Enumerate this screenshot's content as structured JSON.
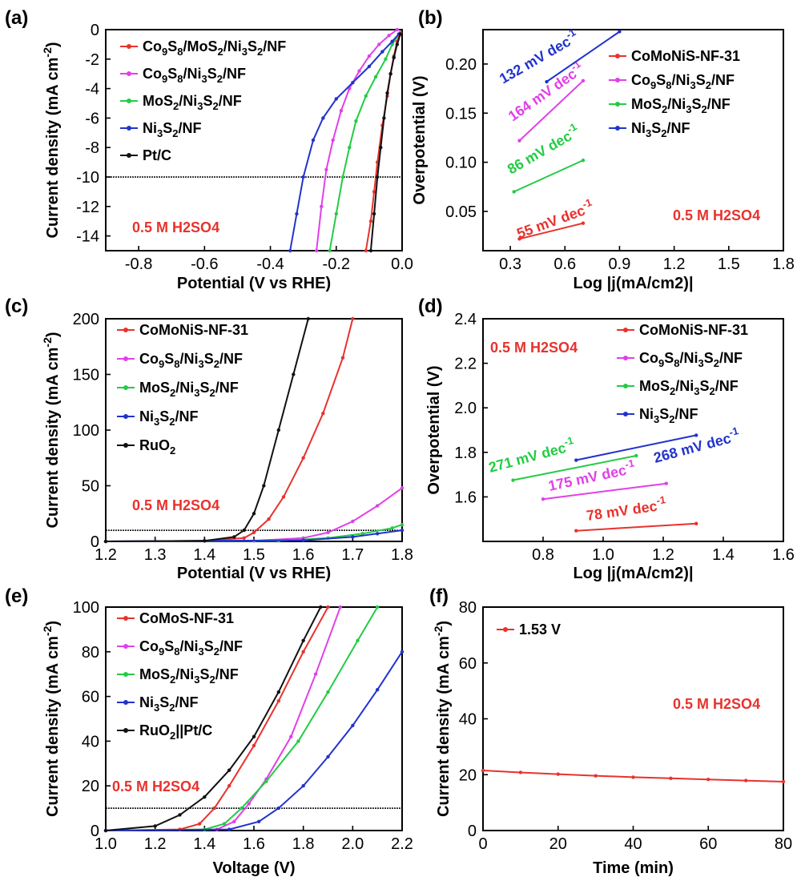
{
  "chart_data": [
    {
      "panel": "(a)",
      "type": "line",
      "xlabel": "Potential (V vs RHE)",
      "ylabel": "Current density (mA cm-2)",
      "xlim": [
        -0.9,
        0.0
      ],
      "ylim": [
        -15,
        0
      ],
      "xticks": [
        "-0.8",
        "-0.6",
        "-0.4",
        "-0.2",
        "0.0"
      ],
      "yticks": [
        "0",
        "-2",
        "-4",
        "-6",
        "-8",
        "-10",
        "-12",
        "-14"
      ],
      "annotation": "0.5 M H2SO4",
      "reference_line_y": -10,
      "legend_placement": "top-left",
      "series": [
        {
          "name": "Co9S8/MoS2/Ni3S2/NF",
          "color": "#e8322d",
          "x": [
            -0.11,
            -0.095,
            -0.085,
            -0.075,
            -0.06,
            -0.045,
            -0.035,
            -0.025,
            -0.015,
            -0.005
          ],
          "y": [
            -15,
            -13,
            -11,
            -9,
            -6.5,
            -4.5,
            -3,
            -1.8,
            -0.8,
            -0.2
          ]
        },
        {
          "name": "Co9S8/Ni3S2/NF",
          "color": "#e040e8",
          "x": [
            -0.26,
            -0.245,
            -0.23,
            -0.21,
            -0.185,
            -0.16,
            -0.13,
            -0.1,
            -0.07,
            -0.04,
            -0.015
          ],
          "y": [
            -15,
            -12,
            -9.5,
            -7.5,
            -5.5,
            -4,
            -2.8,
            -1.8,
            -1,
            -0.4,
            0
          ]
        },
        {
          "name": "MoS2/Ni3S2/NF",
          "color": "#22cc44",
          "x": [
            -0.22,
            -0.2,
            -0.18,
            -0.16,
            -0.14,
            -0.11,
            -0.08,
            -0.05,
            -0.03,
            -0.01
          ],
          "y": [
            -15,
            -12.5,
            -10,
            -8,
            -6.2,
            -4.5,
            -3.2,
            -2,
            -1,
            -0.3
          ]
        },
        {
          "name": "Ni3S2/NF",
          "color": "#2233cc",
          "x": [
            -0.34,
            -0.32,
            -0.3,
            -0.27,
            -0.24,
            -0.2,
            -0.15,
            -0.1,
            -0.06,
            -0.03,
            -0.01
          ],
          "y": [
            -15,
            -12.5,
            -10,
            -7.5,
            -6,
            -4.7,
            -3.6,
            -2.5,
            -1.5,
            -0.8,
            -0.3
          ]
        },
        {
          "name": "Pt/C",
          "color": "#111111",
          "x": [
            -0.095,
            -0.085,
            -0.075,
            -0.065,
            -0.055,
            -0.045,
            -0.035,
            -0.025,
            -0.015,
            -0.005
          ],
          "y": [
            -15,
            -12.5,
            -10,
            -8,
            -6,
            -4.3,
            -3,
            -1.9,
            -1,
            -0.3
          ]
        }
      ]
    },
    {
      "panel": "(b)",
      "type": "line",
      "xlabel": "Log |j(mA/cm2)|",
      "ylabel": "Overpotential (V)",
      "xlim": [
        0.15,
        1.8
      ],
      "ylim": [
        0.01,
        0.235
      ],
      "xticks": [
        "0.3",
        "0.6",
        "0.9",
        "1.2",
        "1.5",
        "1.8"
      ],
      "yticks": [
        "0.05",
        "0.10",
        "0.15",
        "0.20"
      ],
      "annotation": "0.5 M H2SO4",
      "legend_placement": "top-right",
      "series": [
        {
          "name": "CoMoNiS-NF-31",
          "color": "#e8322d",
          "x": [
            0.35,
            0.7
          ],
          "y": [
            0.022,
            0.038
          ],
          "slope_label": "55 mV dec-1"
        },
        {
          "name": "Co9S8/Ni3S2/NF",
          "color": "#e040e8",
          "x": [
            0.35,
            0.7
          ],
          "y": [
            0.122,
            0.183
          ],
          "slope_label": "164 mV dec-1"
        },
        {
          "name": "MoS2/Ni3S2/NF",
          "color": "#22cc44",
          "x": [
            0.32,
            0.7
          ],
          "y": [
            0.07,
            0.102
          ],
          "slope_label": "86 mV dec-1"
        },
        {
          "name": "Ni3S2/NF",
          "color": "#2233cc",
          "x": [
            0.5,
            0.9
          ],
          "y": [
            0.182,
            0.233
          ],
          "slope_label": "132 mV dec-1"
        }
      ]
    },
    {
      "panel": "(c)",
      "type": "line",
      "xlabel": "Potential (V vs RHE)",
      "ylabel": "Current density (mA cm-2)",
      "xlim": [
        1.2,
        1.8
      ],
      "ylim": [
        0,
        200
      ],
      "xticks": [
        "1.2",
        "1.3",
        "1.4",
        "1.5",
        "1.6",
        "1.7",
        "1.8"
      ],
      "yticks": [
        "0",
        "50",
        "100",
        "150",
        "200"
      ],
      "annotation": "0.5 M H2SO4",
      "reference_line_y": 10,
      "legend_placement": "top-left",
      "series": [
        {
          "name": "CoMoNiS-NF-31",
          "color": "#e8322d",
          "x": [
            1.2,
            1.4,
            1.48,
            1.5,
            1.53,
            1.56,
            1.6,
            1.64,
            1.68,
            1.7
          ],
          "y": [
            0,
            0.5,
            3,
            8,
            20,
            40,
            75,
            115,
            165,
            200
          ]
        },
        {
          "name": "Co9S8/Ni3S2/NF",
          "color": "#e040e8",
          "x": [
            1.2,
            1.5,
            1.6,
            1.65,
            1.7,
            1.75,
            1.8
          ],
          "y": [
            0,
            0.5,
            3,
            8,
            18,
            32,
            48
          ]
        },
        {
          "name": "MoS2/Ni3S2/NF",
          "color": "#22cc44",
          "x": [
            1.2,
            1.55,
            1.65,
            1.72,
            1.78,
            1.8
          ],
          "y": [
            0,
            0.5,
            3,
            7,
            12,
            15
          ]
        },
        {
          "name": "Ni3S2/NF",
          "color": "#2233cc",
          "x": [
            1.2,
            1.6,
            1.7,
            1.75,
            1.8
          ],
          "y": [
            0,
            1,
            4,
            7,
            10
          ]
        },
        {
          "name": "RuO2",
          "color": "#111111",
          "x": [
            1.2,
            1.4,
            1.46,
            1.48,
            1.5,
            1.52,
            1.55,
            1.58,
            1.61
          ],
          "y": [
            0,
            0.5,
            4,
            10,
            25,
            50,
            100,
            150,
            200
          ]
        }
      ]
    },
    {
      "panel": "(d)",
      "type": "line",
      "xlabel": "Log |j(mA/cm2)|",
      "ylabel": "Overpotential (V)",
      "xlim": [
        0.6,
        1.6
      ],
      "ylim": [
        1.4,
        2.4
      ],
      "xticks": [
        "0.8",
        "1.0",
        "1.2",
        "1.4",
        "1.6"
      ],
      "yticks": [
        "1.6",
        "1.8",
        "2.0",
        "2.2",
        "2.4"
      ],
      "annotation": "0.5 M H2SO4",
      "legend_placement": "top-right",
      "series": [
        {
          "name": "CoMoNiS-NF-31",
          "color": "#e8322d",
          "x": [
            0.91,
            1.31
          ],
          "y": [
            1.448,
            1.48
          ],
          "slope_label": "78 mV dec-1"
        },
        {
          "name": "Co9S8/Ni3S2/NF",
          "color": "#e040e8",
          "x": [
            0.8,
            1.21
          ],
          "y": [
            1.59,
            1.66
          ],
          "slope_label": "175 mV dec-1"
        },
        {
          "name": "MoS2/Ni3S2/NF",
          "color": "#22cc44",
          "x": [
            0.7,
            1.11
          ],
          "y": [
            1.675,
            1.785
          ],
          "slope_label": "271 mV dec-1"
        },
        {
          "name": "Ni3S2/NF",
          "color": "#2233cc",
          "x": [
            0.91,
            1.31
          ],
          "y": [
            1.765,
            1.877
          ],
          "slope_label": "268 mV dec-1"
        }
      ]
    },
    {
      "panel": "(e)",
      "type": "line",
      "xlabel": "Voltage (V)",
      "ylabel": "Current density (mA cm-2)",
      "xlim": [
        1.0,
        2.2
      ],
      "ylim": [
        0,
        100
      ],
      "xticks": [
        "1.0",
        "1.2",
        "1.4",
        "1.6",
        "1.8",
        "2.0",
        "2.2"
      ],
      "yticks": [
        "0",
        "20",
        "40",
        "60",
        "80",
        "100"
      ],
      "annotation": "0.5 M H2SO4",
      "reference_line_y": 10,
      "legend_placement": "top-left",
      "series": [
        {
          "name": "CoMoS-NF-31",
          "color": "#e8322d",
          "x": [
            1.0,
            1.3,
            1.38,
            1.44,
            1.5,
            1.6,
            1.7,
            1.8,
            1.9
          ],
          "y": [
            0,
            0.5,
            3,
            10,
            20,
            38,
            58,
            80,
            100
          ]
        },
        {
          "name": "Co9S8/Ni3S2/NF",
          "color": "#e040e8",
          "x": [
            1.0,
            1.45,
            1.52,
            1.58,
            1.65,
            1.75,
            1.85,
            1.95
          ],
          "y": [
            0,
            0.5,
            4,
            12,
            23,
            42,
            70,
            100
          ]
        },
        {
          "name": "MoS2/Ni3S2/NF",
          "color": "#22cc44",
          "x": [
            1.0,
            1.4,
            1.48,
            1.55,
            1.65,
            1.78,
            1.9,
            2.02,
            2.1
          ],
          "y": [
            0,
            0.5,
            3,
            10,
            22,
            40,
            62,
            85,
            100
          ]
        },
        {
          "name": "Ni3S2/NF",
          "color": "#2233cc",
          "x": [
            1.0,
            1.5,
            1.62,
            1.7,
            1.8,
            1.9,
            2.0,
            2.1,
            2.2
          ],
          "y": [
            0,
            0.5,
            4,
            10,
            20,
            33,
            47,
            63,
            80
          ]
        },
        {
          "name": "RuO2||Pt/C",
          "color": "#111111",
          "x": [
            1.0,
            1.2,
            1.3,
            1.4,
            1.5,
            1.6,
            1.7,
            1.8,
            1.87
          ],
          "y": [
            0,
            2,
            7,
            15,
            27,
            42,
            62,
            85,
            100
          ]
        }
      ]
    },
    {
      "panel": "(f)",
      "type": "line",
      "xlabel": "Time (min)",
      "ylabel": "Current density (mA cm-2)",
      "xlim": [
        0,
        80
      ],
      "ylim": [
        0,
        80
      ],
      "xticks": [
        "0",
        "20",
        "40",
        "60",
        "80"
      ],
      "yticks": [
        "0",
        "20",
        "40",
        "60",
        "80"
      ],
      "annotation": "0.5 M H2SO4",
      "legend_placement": "top-left",
      "series": [
        {
          "name": "1.53 V",
          "color": "#e8322d",
          "x": [
            0,
            10,
            20,
            30,
            40,
            50,
            60,
            70,
            80
          ],
          "y": [
            21.5,
            20.8,
            20.2,
            19.6,
            19.1,
            18.7,
            18.3,
            17.9,
            17.5
          ]
        }
      ]
    }
  ]
}
